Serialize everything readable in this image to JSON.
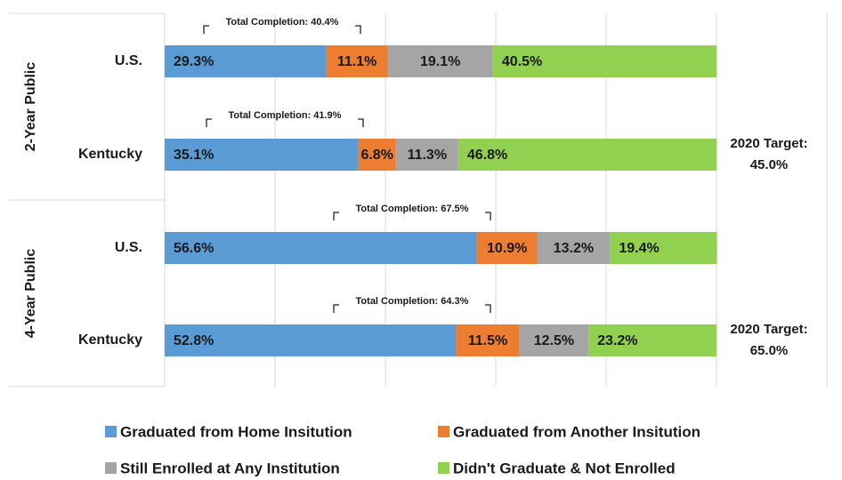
{
  "chart_data": {
    "type": "stacked_barh",
    "groups": [
      "2-Year Public",
      "4-Year Public"
    ],
    "categories": [
      "U.S.",
      "Kentucky",
      "U.S.",
      "Kentucky"
    ],
    "series": [
      {
        "name": "Graduated from Home Insitution",
        "color": "#5b9bd5",
        "values": [
          29.3,
          35.1,
          56.6,
          52.8
        ],
        "value_labels": [
          "29.3%",
          "35.1%",
          "56.6%",
          "52.8%"
        ]
      },
      {
        "name": "Graduated from Another Insitution",
        "color": "#ed7d31",
        "values": [
          11.1,
          6.8,
          10.9,
          11.5
        ],
        "value_labels": [
          "11.1%",
          "6.8%",
          "10.9%",
          "11.5%"
        ]
      },
      {
        "name": "Still Enrolled at Any Institution",
        "color": "#a5a5a5",
        "values": [
          19.1,
          11.3,
          13.2,
          12.5
        ],
        "value_labels": [
          "19.1%",
          "11.3%",
          "13.2%",
          "12.5%"
        ]
      },
      {
        "name": "Didn't Graduate & Not Enrolled",
        "color": "#92d050",
        "values": [
          40.5,
          46.8,
          19.4,
          23.2
        ],
        "value_labels": [
          "40.5%",
          "46.8%",
          "19.4%",
          "23.2%"
        ]
      }
    ],
    "annotations": [
      "Total Completion: 40.4%",
      "Total Completion: 41.9%",
      "Total Completion: 67.5%",
      "Total Completion: 64.3%"
    ],
    "targets": [
      {
        "label": "2020 Target:",
        "value_label": "45.0%"
      },
      {
        "label": "2020 Target:",
        "value_label": "65.0%"
      }
    ],
    "xlim": [
      0,
      120
    ],
    "xticks": [
      0,
      20,
      40,
      60,
      80,
      100,
      120
    ],
    "grid": true
  }
}
